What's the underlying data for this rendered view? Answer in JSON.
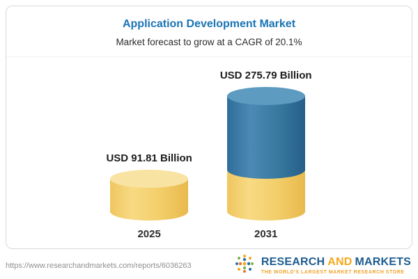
{
  "header": {
    "title": "Application Development Market",
    "subtitle": "Market forecast to grow at a CAGR of 20.1%"
  },
  "chart_data": {
    "type": "bar",
    "title": "Application Development Market",
    "subtitle": "Market forecast to grow at a CAGR of 20.1%",
    "unit": "USD Billion",
    "categories": [
      "2025",
      "2031"
    ],
    "values": [
      91.81,
      275.79
    ],
    "value_labels": [
      "USD 91.81 Billion",
      "USD 275.79 Billion"
    ],
    "cagr_pct": 20.1,
    "legend": "none",
    "grid": "off",
    "colors": {
      "bar_2025": "#f3cf6b",
      "bar_2031_upper": "#3579a8",
      "bar_2031_lower": "#f3cf6b",
      "title_accent": "#1a74b4"
    }
  },
  "footer": {
    "url": "https://www.researchandmarkets.com/reports/6036263",
    "logo": {
      "word1": "RESEARCH",
      "word2": "AND",
      "word3": "MARKETS",
      "tagline": "THE WORLD'S LARGEST MARKET RESEARCH STORE"
    }
  }
}
